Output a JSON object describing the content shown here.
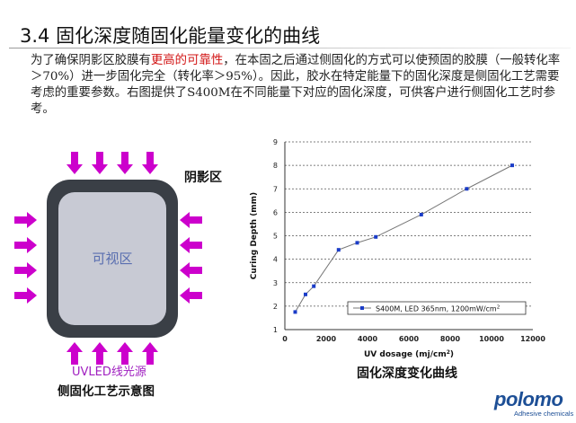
{
  "slide": {
    "title": "3.4 固化深度随固化能量变化的曲线",
    "paragraph": {
      "part1": "为了确保阴影区胶膜有",
      "highlight": "更高的可靠性",
      "part2": "，在本固之后通过侧固化的方式可以使预固的胶膜（一般转化率＞70%）进一步固化完全（转化率＞95%）。因此，胶水在特定能量下的固化深度是侧固化工艺需要考虑的重要参数。右图提供了S400M在不同能量下对应的固化深度，可供客户进行侧固化工艺时参考。"
    },
    "highlight_color": "#d21414"
  },
  "diagram": {
    "shadow_label": "阴影区",
    "window_label": "可视区",
    "uv_label": "UVLED线光源",
    "caption": "侧固化工艺示意图",
    "arrow_color": "#cc00cc",
    "frame_color": "#3a3f46"
  },
  "chart_data": {
    "type": "line",
    "xlabel": "UV dosage (mj/cm2)",
    "ylabel": "Curing Depth (mm)",
    "xlim": [
      0,
      12000
    ],
    "ylim": [
      1,
      9
    ],
    "xticks": [
      "0",
      "2000",
      "4000",
      "6000",
      "8000",
      "10000",
      "12000"
    ],
    "yticks": [
      "1",
      "2",
      "3",
      "4",
      "5",
      "6",
      "7",
      "8",
      "9"
    ],
    "grid": "horizontal dashed",
    "legend_position": "bottom-right",
    "series": [
      {
        "name": "S400M, LED 365nm, 1200mW/cm2",
        "color": "#1a3cc8",
        "x": [
          500,
          1000,
          1400,
          2600,
          3500,
          4400,
          6600,
          8800,
          11000
        ],
        "y": [
          1.75,
          2.5,
          2.85,
          4.4,
          4.7,
          4.95,
          5.9,
          7.0,
          8.0
        ]
      }
    ]
  },
  "chart_caption": "固化深度变化曲线",
  "logo": {
    "word": "polomo",
    "sub": "Adhesive chemicals"
  }
}
